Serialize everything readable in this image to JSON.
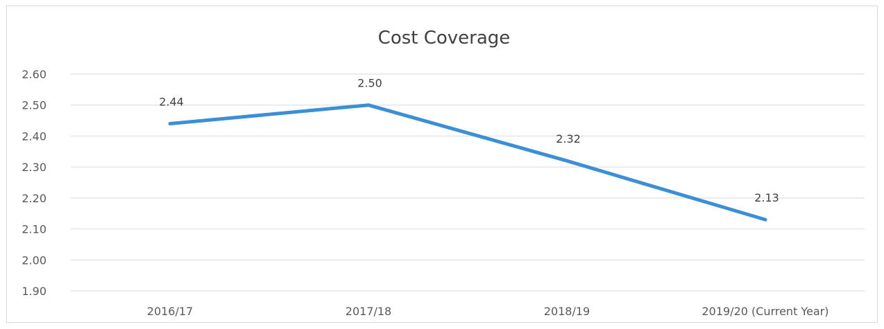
{
  "chart_data": {
    "type": "line",
    "title": "Cost Coverage",
    "categories": [
      "2016/17",
      "2017/18",
      "2018/19",
      "2019/20 (Current Year)"
    ],
    "series": [
      {
        "values": [
          2.44,
          2.5,
          2.32,
          2.13
        ],
        "color": "#3a8fd6",
        "labels": [
          "2.44",
          "2.50",
          "2.32",
          "2.13"
        ]
      }
    ],
    "yticks": [
      "1.90",
      "2.00",
      "2.10",
      "2.20",
      "2.30",
      "2.40",
      "2.50",
      "2.60"
    ],
    "ylim": [
      1.9,
      2.6
    ],
    "grid": true,
    "legend": "none"
  }
}
